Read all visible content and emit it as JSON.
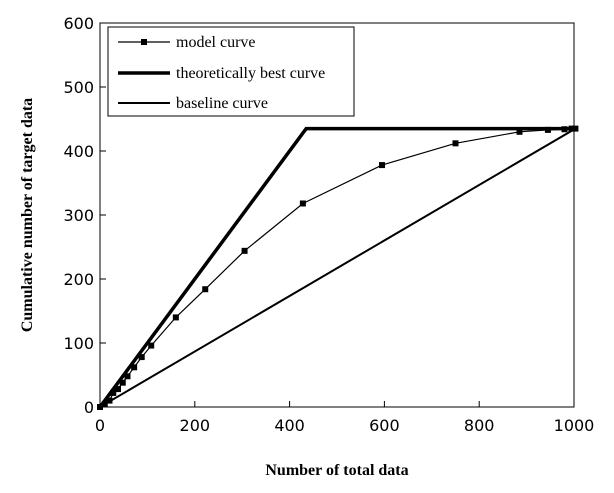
{
  "chart_data": {
    "type": "line",
    "xlabel": "Number of total data",
    "ylabel": "Cumulative number of target data",
    "xlim": [
      0,
      1000
    ],
    "ylim": [
      0,
      600
    ],
    "x_ticks": [
      "0",
      "200",
      "400",
      "600",
      "800",
      "1000"
    ],
    "y_ticks": [
      "0",
      "100",
      "200",
      "300",
      "400",
      "500",
      "600"
    ],
    "grid": false,
    "legend_position": "top-left",
    "series": [
      {
        "name": "model curve",
        "marker": "square",
        "line": "thin",
        "points": [
          [
            0,
            0
          ],
          [
            10,
            4
          ],
          [
            20,
            10
          ],
          [
            28,
            22
          ],
          [
            38,
            28
          ],
          [
            48,
            38
          ],
          [
            58,
            48
          ],
          [
            72,
            62
          ],
          [
            88,
            78
          ],
          [
            108,
            96
          ],
          [
            160,
            140
          ],
          [
            222,
            184
          ],
          [
            305,
            244
          ],
          [
            428,
            318
          ],
          [
            595,
            378
          ],
          [
            750,
            412
          ],
          [
            885,
            430
          ],
          [
            945,
            433
          ],
          [
            980,
            434
          ],
          [
            995,
            435
          ],
          [
            1003,
            435
          ]
        ]
      },
      {
        "name": "theoretically best curve",
        "marker": "none",
        "line": "thick",
        "points": [
          [
            0,
            0
          ],
          [
            435,
            435
          ],
          [
            1003,
            435
          ]
        ]
      },
      {
        "name": "baseline curve",
        "marker": "none",
        "line": "medium",
        "points": [
          [
            0,
            0
          ],
          [
            1003,
            435
          ]
        ]
      }
    ]
  }
}
